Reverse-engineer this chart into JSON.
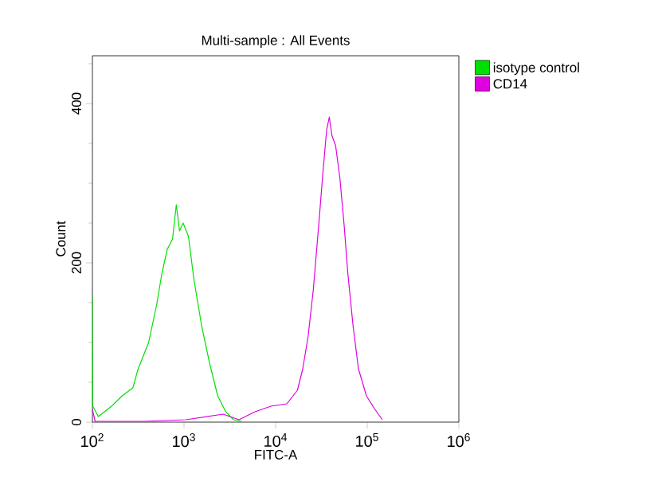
{
  "chart_data": {
    "type": "line",
    "title": "Multi-sample : All Events",
    "xlabel": "FITC-A",
    "ylabel": "Count",
    "log": "x",
    "legend": "top right",
    "marker": "none",
    "xlim": [
      100,
      1000000
    ],
    "ylim": [
      0,
      460
    ],
    "xticks": [
      {
        "value": 100,
        "label": "10$^{2}$"
      },
      {
        "value": 1000,
        "label": "10$^{3}$"
      },
      {
        "value": 10000,
        "label": "10$^{4}$"
      },
      {
        "value": 100000,
        "label": "10$^{5}$"
      },
      {
        "value": 1000000,
        "label": "10$^{6}$"
      }
    ],
    "yticks": [
      0,
      200,
      400
    ],
    "series": [
      {
        "name": "isotype control",
        "color": "#00e000",
        "x": [
          100,
          101,
          116,
          162,
          211,
          276,
          316,
          411,
          502,
          574,
          656,
          750,
          824,
          893,
          979,
          1119,
          1279,
          1563,
          1910,
          2333,
          2851,
          3483,
          4256
        ],
        "values": [
          160,
          20,
          7,
          20,
          33,
          43,
          67,
          100,
          147,
          187,
          217,
          230,
          273,
          240,
          250,
          233,
          180,
          120,
          73,
          33,
          13,
          3,
          1
        ]
      },
      {
        "name": "CD14",
        "color": "#e000e0",
        "x": [
          100,
          107,
          361,
          1047,
          2667,
          3981,
          5943,
          8872,
          13243,
          17298,
          19770,
          22594,
          25823,
          29512,
          32810,
          36058,
          38548,
          41115,
          45186,
          50234,
          55976,
          61376,
          70146,
          80168,
          97949,
          119674,
          146218
        ],
        "values": [
          16,
          1,
          1,
          3,
          10,
          3,
          13,
          20,
          23,
          40,
          67,
          107,
          167,
          247,
          313,
          367,
          383,
          360,
          347,
          307,
          247,
          187,
          120,
          67,
          33,
          17,
          3
        ]
      }
    ]
  }
}
